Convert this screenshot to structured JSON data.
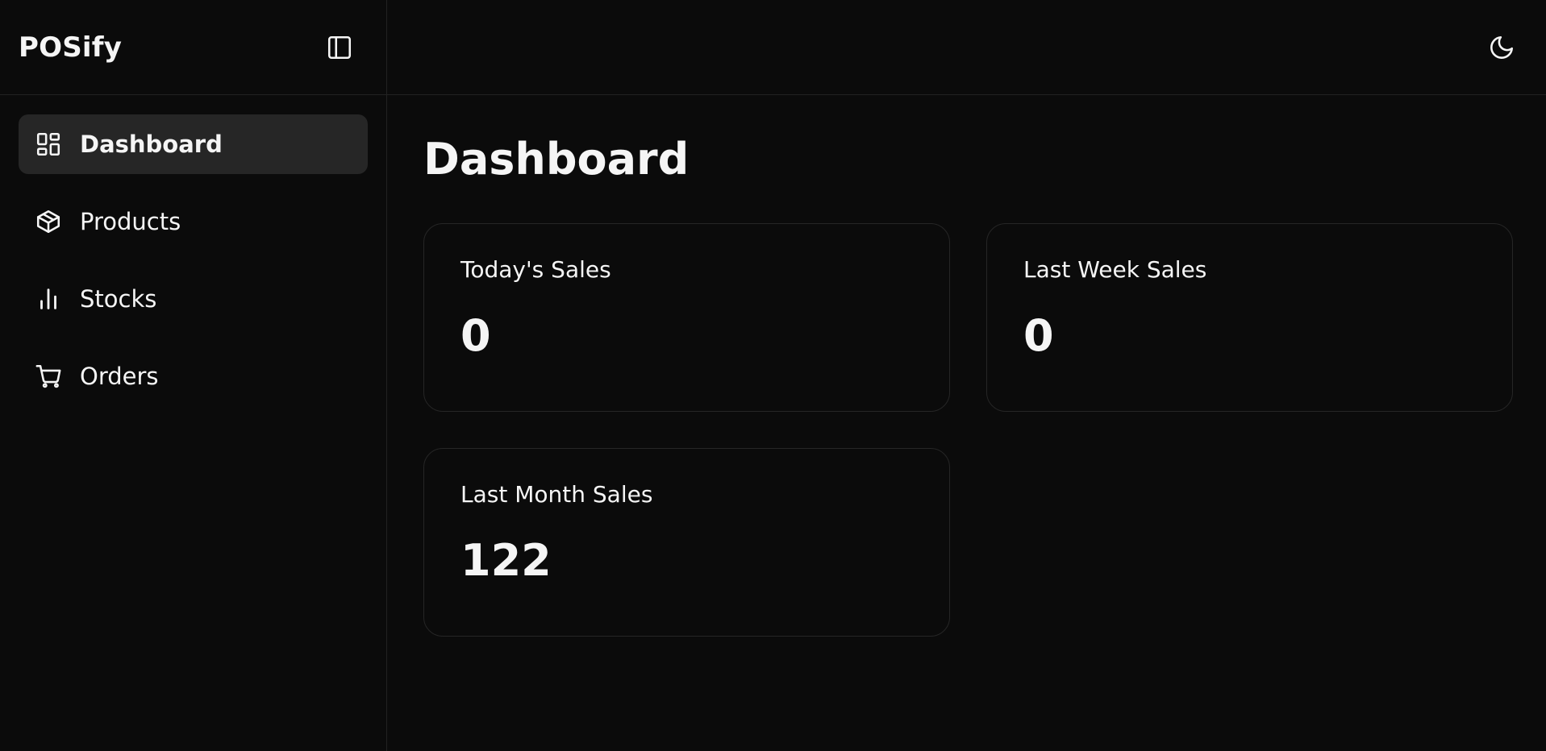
{
  "app": {
    "title": "POSify"
  },
  "sidebar": {
    "toggle_icon": "sidebar-panel-icon",
    "items": [
      {
        "label": "Dashboard",
        "icon": "layout-dashboard-icon",
        "active": true
      },
      {
        "label": "Products",
        "icon": "package-icon",
        "active": false
      },
      {
        "label": "Stocks",
        "icon": "bar-chart-icon",
        "active": false
      },
      {
        "label": "Orders",
        "icon": "shopping-cart-icon",
        "active": false
      }
    ]
  },
  "header": {
    "theme_icon": "moon-icon"
  },
  "main": {
    "title": "Dashboard",
    "cards": [
      {
        "title": "Today's Sales",
        "value": "0"
      },
      {
        "title": "Last Week Sales",
        "value": "0"
      },
      {
        "title": "Last Month Sales",
        "value": "122"
      }
    ]
  },
  "colors": {
    "background": "#0b0b0b",
    "active_item": "#262626",
    "border": "#222222",
    "text": "#f5f5f5"
  }
}
